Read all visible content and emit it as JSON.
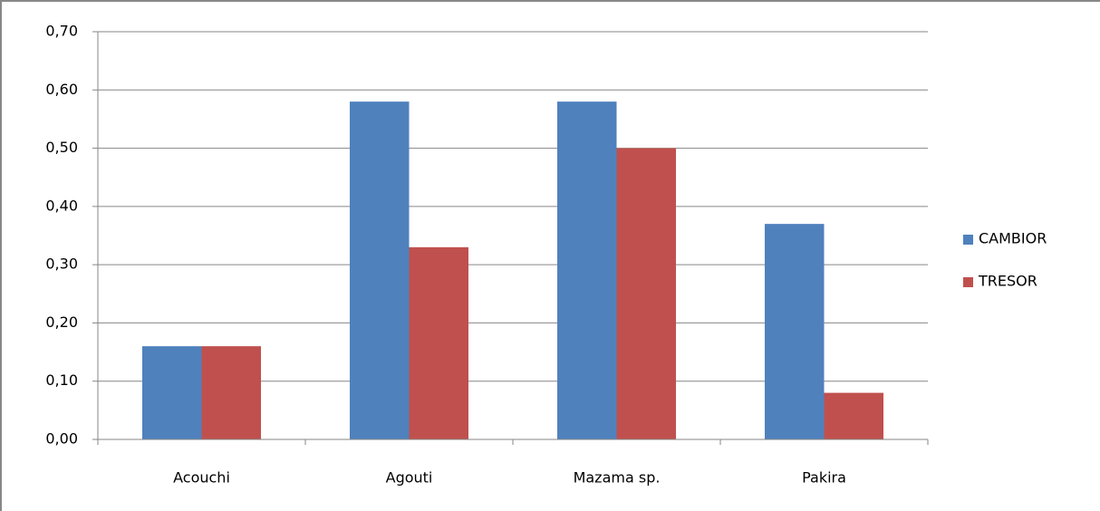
{
  "chart_data": {
    "type": "bar",
    "categories": [
      "Acouchi",
      "Agouti",
      "Mazama sp.",
      "Pakira"
    ],
    "series": [
      {
        "name": "CAMBIOR",
        "color": "#4f81bd",
        "values": [
          0.16,
          0.58,
          0.58,
          0.37
        ]
      },
      {
        "name": "TRESOR",
        "color": "#c0504d",
        "values": [
          0.16,
          0.33,
          0.5,
          0.08
        ]
      }
    ],
    "ylim": [
      0,
      0.7
    ],
    "yticks": [
      {
        "value": 0,
        "label": "0,00"
      },
      {
        "value": 0.1,
        "label": "0,10"
      },
      {
        "value": 0.2,
        "label": "0,20"
      },
      {
        "value": 0.3,
        "label": "0,30"
      },
      {
        "value": 0.4,
        "label": "0,40"
      },
      {
        "value": 0.5,
        "label": "0,50"
      },
      {
        "value": 0.6,
        "label": "0,60"
      },
      {
        "value": 0.7,
        "label": "0,70"
      }
    ],
    "grid": true,
    "legend": "right"
  }
}
